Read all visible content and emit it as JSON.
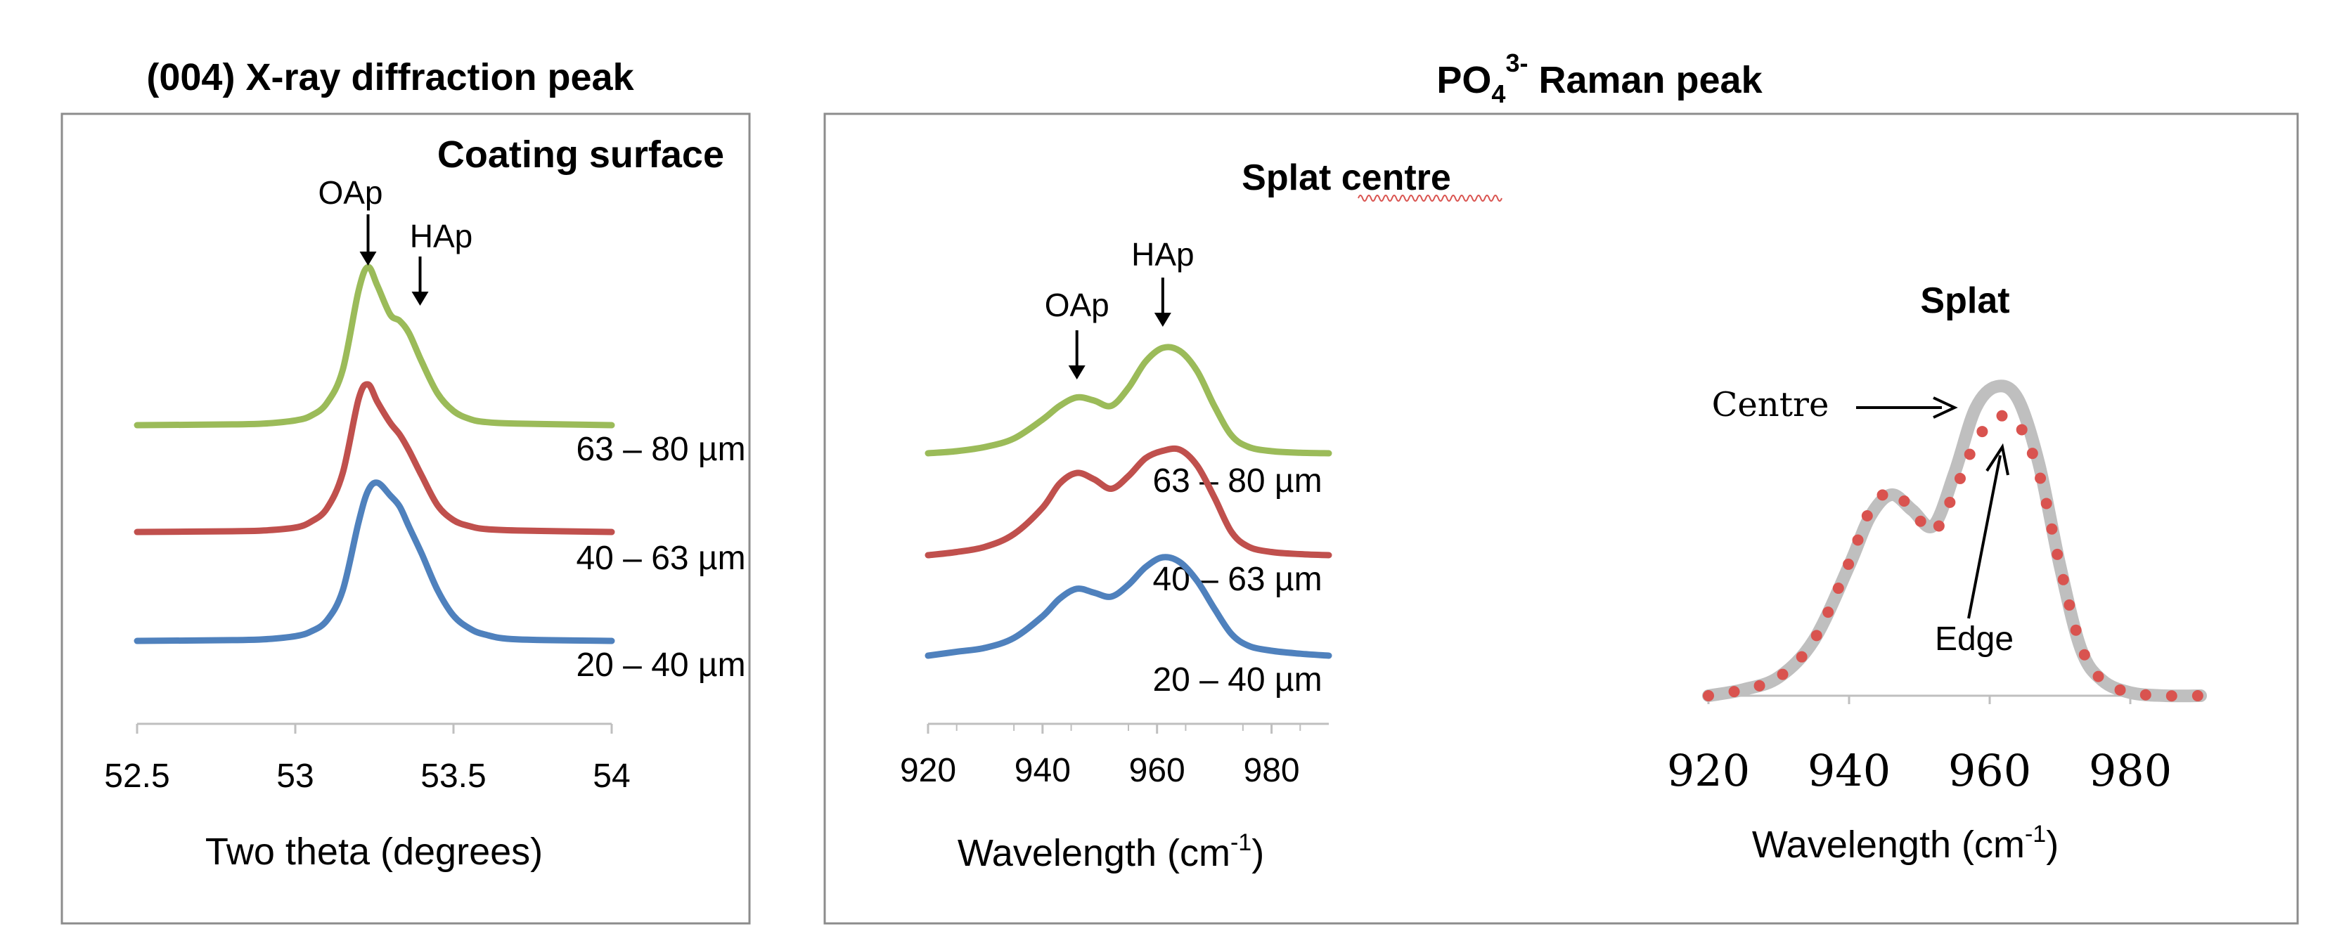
{
  "panels": {
    "xrd_title": "(004) X-ray diffraction peak",
    "raman_title_base": "PO",
    "raman_title_sub": "4",
    "raman_title_sup": "3-",
    "raman_title_rest": " Raman peak"
  },
  "chart_data": [
    {
      "type": "line",
      "title": "(004) X-ray diffraction peak",
      "subtitle": "Coating surface",
      "xlabel": "Two theta  (degrees)",
      "ylabel": "",
      "xlim": [
        52.5,
        54
      ],
      "xticks": [
        "52.5",
        "53",
        "53.5",
        "54"
      ],
      "x": [
        52.5,
        52.8,
        52.9,
        53.0,
        53.05,
        53.1,
        53.15,
        53.2,
        53.23,
        53.26,
        53.3,
        53.33,
        53.36,
        53.4,
        53.45,
        53.5,
        53.55,
        53.6,
        53.7,
        54.0
      ],
      "annotations": [
        {
          "text": "OAp",
          "x": 53.23
        },
        {
          "text": "HAp",
          "x": 53.35
        }
      ],
      "series": [
        {
          "name": "63 – 80 µm",
          "label": "63 – 80 µm",
          "color": "#9bbb59",
          "values": [
            0,
            0.005,
            0.01,
            0.03,
            0.06,
            0.14,
            0.35,
            0.85,
            1.0,
            0.88,
            0.7,
            0.66,
            0.58,
            0.4,
            0.2,
            0.09,
            0.04,
            0.02,
            0.01,
            0
          ]
        },
        {
          "name": "40 – 63 µm",
          "label": "40 – 63 µm",
          "color": "#c0504d",
          "values": [
            0,
            0.005,
            0.01,
            0.03,
            0.07,
            0.16,
            0.4,
            0.9,
            1.0,
            0.88,
            0.74,
            0.66,
            0.55,
            0.38,
            0.18,
            0.08,
            0.04,
            0.02,
            0.01,
            0
          ]
        },
        {
          "name": "20 – 40 µm",
          "label": "20 – 40 µm",
          "color": "#4f81bd",
          "values": [
            0,
            0.005,
            0.01,
            0.03,
            0.06,
            0.13,
            0.32,
            0.75,
            0.95,
            1.0,
            0.92,
            0.85,
            0.72,
            0.55,
            0.32,
            0.16,
            0.08,
            0.04,
            0.01,
            0
          ]
        }
      ]
    },
    {
      "type": "line",
      "title": "Splat centre",
      "xlabel_base": "Wavelength (cm",
      "xlabel_sup": "-1",
      "xlabel_end": ")",
      "xlim": [
        920,
        990
      ],
      "xticks": [
        "920",
        "940",
        "960",
        "980"
      ],
      "x": [
        920,
        925,
        930,
        935,
        940,
        943,
        946,
        949,
        952,
        955,
        958,
        961,
        964,
        967,
        970,
        973,
        976,
        980,
        985,
        990
      ],
      "annotations": [
        {
          "text": "OAp",
          "x": 946
        },
        {
          "text": "HAp",
          "x": 961
        }
      ],
      "series": [
        {
          "name": "63 – 80 µm",
          "label": "63 – 80 µm",
          "color": "#9bbb59",
          "values": [
            0,
            0.02,
            0.06,
            0.14,
            0.32,
            0.45,
            0.53,
            0.5,
            0.45,
            0.62,
            0.87,
            1.0,
            0.97,
            0.78,
            0.45,
            0.17,
            0.06,
            0.02,
            0.005,
            0
          ]
        },
        {
          "name": "40 – 63 µm",
          "label": "40 – 63 µm",
          "color": "#c0504d",
          "values": [
            0,
            0.03,
            0.08,
            0.2,
            0.45,
            0.68,
            0.78,
            0.72,
            0.63,
            0.75,
            0.92,
            0.99,
            1.0,
            0.85,
            0.55,
            0.22,
            0.08,
            0.03,
            0.01,
            0
          ]
        },
        {
          "name": "20 – 40 µm",
          "label": "20 – 40 µm",
          "color": "#4f81bd",
          "values": [
            0,
            0.04,
            0.08,
            0.18,
            0.4,
            0.58,
            0.68,
            0.64,
            0.6,
            0.72,
            0.9,
            1.0,
            0.95,
            0.76,
            0.48,
            0.22,
            0.1,
            0.05,
            0.02,
            0
          ]
        }
      ]
    },
    {
      "type": "line",
      "title": "Splat",
      "xlabel_base": "Wavelength (cm",
      "xlabel_sup": "-1",
      "xlabel_end": ")",
      "xlim": [
        920,
        990
      ],
      "xticks": [
        "920",
        "940",
        "960",
        "980"
      ],
      "x": [
        920,
        925,
        930,
        935,
        940,
        943,
        946,
        949,
        952,
        955,
        958,
        961,
        964,
        967,
        970,
        973,
        976,
        980,
        985,
        990
      ],
      "annotations": [
        {
          "text": "Centre",
          "target": "Centre",
          "x": 960
        },
        {
          "text": "Edge",
          "target": "Edge",
          "x": 962
        }
      ],
      "series": [
        {
          "name": "Centre",
          "label": "Centre",
          "color": "#bfbfbf",
          "style": "solid",
          "values": [
            0,
            0.02,
            0.06,
            0.18,
            0.42,
            0.58,
            0.65,
            0.6,
            0.55,
            0.72,
            0.93,
            1.0,
            0.96,
            0.75,
            0.42,
            0.15,
            0.05,
            0.01,
            0.0,
            0
          ]
        },
        {
          "name": "Edge",
          "label": "Edge",
          "color": "#d9534f",
          "style": "dotted",
          "values": [
            0,
            0.02,
            0.06,
            0.18,
            0.43,
            0.6,
            0.66,
            0.6,
            0.53,
            0.66,
            0.82,
            0.9,
            0.88,
            0.72,
            0.42,
            0.16,
            0.05,
            0.01,
            0.0,
            0
          ]
        }
      ]
    }
  ]
}
